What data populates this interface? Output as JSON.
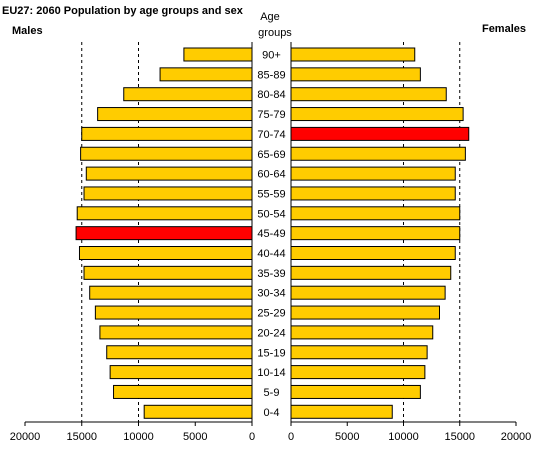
{
  "chart_data": {
    "type": "bar",
    "title": "EU27: 2060 Population by age groups and sex",
    "center_header": [
      "Age",
      "groups"
    ],
    "categories": [
      "90+",
      "85-89",
      "80-84",
      "75-79",
      "70-74",
      "65-69",
      "60-64",
      "55-59",
      "50-54",
      "45-49",
      "40-44",
      "35-39",
      "30-34",
      "25-29",
      "20-24",
      "15-19",
      "10-14",
      "5-9",
      "0-4"
    ],
    "series": [
      {
        "name": "Males",
        "values": [
          6000,
          8100,
          11300,
          13600,
          15000,
          15100,
          14600,
          14800,
          15400,
          15500,
          15200,
          14800,
          14300,
          13800,
          13400,
          12800,
          12500,
          12200,
          9500
        ],
        "highlight_index": 9
      },
      {
        "name": "Females",
        "values": [
          11000,
          11500,
          13800,
          15300,
          15800,
          15500,
          14600,
          14600,
          15000,
          15000,
          14600,
          14200,
          13700,
          13200,
          12600,
          12100,
          11900,
          11500,
          9000
        ],
        "highlight_index": 4
      }
    ],
    "xlim": [
      0,
      20000
    ],
    "xticks": [
      0,
      5000,
      10000,
      15000,
      20000
    ],
    "xtick_labels": [
      "0",
      "5000",
      "10000",
      "15000",
      "20000"
    ],
    "gridlines": [
      10000,
      15000
    ],
    "colors": {
      "bar": "#FFCC00",
      "highlight": "#FF0000",
      "grid": "#000000"
    }
  }
}
